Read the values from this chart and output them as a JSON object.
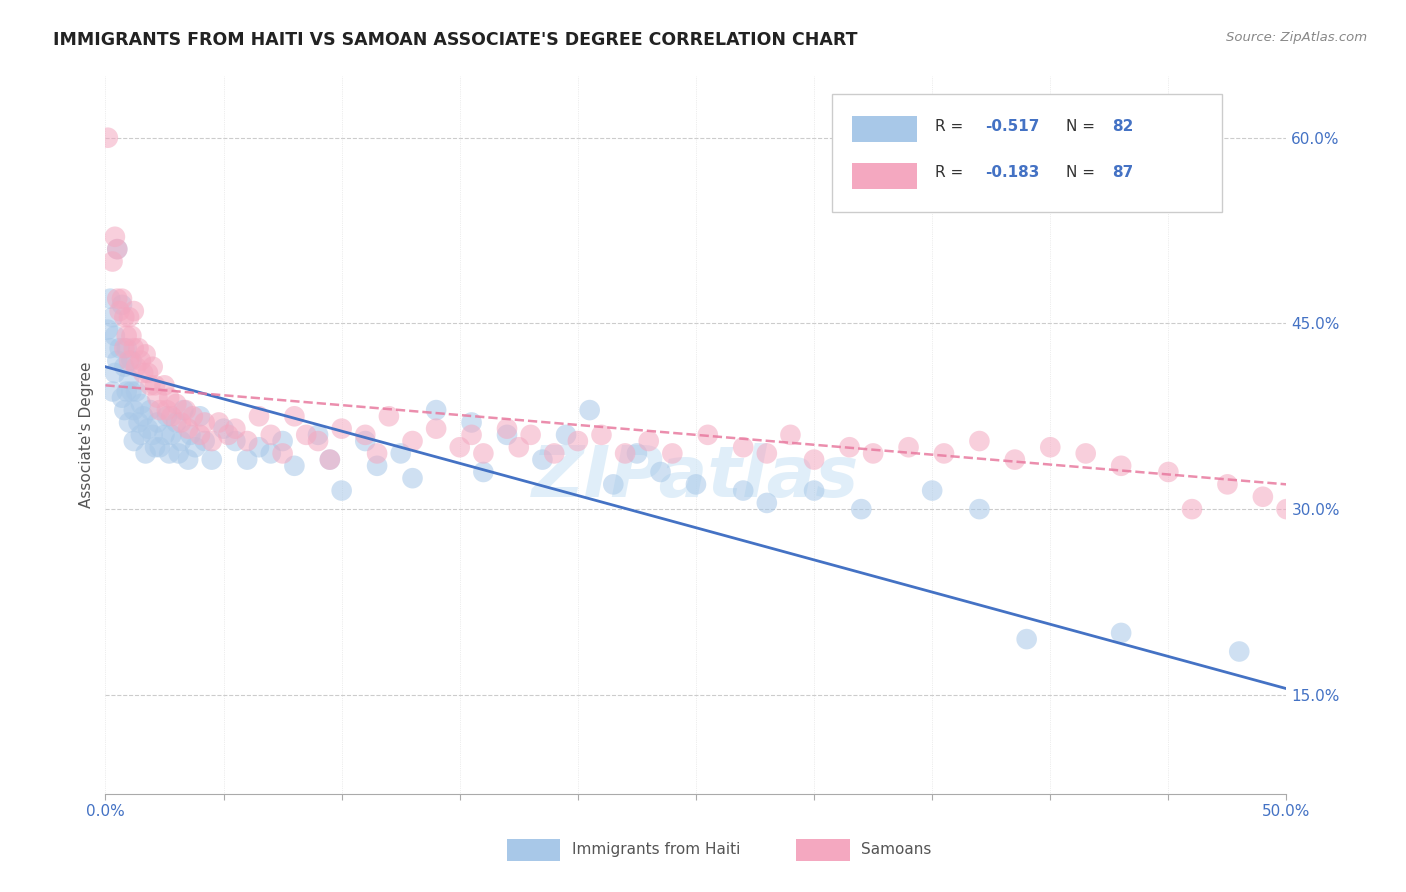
{
  "title": "IMMIGRANTS FROM HAITI VS SAMOAN ASSOCIATE'S DEGREE CORRELATION CHART",
  "source": "Source: ZipAtlas.com",
  "ylabel": "Associate's Degree",
  "haiti_color": "#a8c8e8",
  "samoan_color": "#f4a8c0",
  "haiti_line_color": "#4472c4",
  "samoan_line_color": "#e87a9f",
  "watermark": "ZIPatlas",
  "xlim": [
    0.0,
    0.5
  ],
  "ylim": [
    0.07,
    0.65
  ],
  "yticks_right": [
    0.15,
    0.3,
    0.45,
    0.6
  ],
  "haiti_trend_x": [
    0.0,
    0.5
  ],
  "haiti_trend_y": [
    0.415,
    0.155
  ],
  "samoan_trend_x": [
    0.0,
    0.5
  ],
  "samoan_trend_y": [
    0.4,
    0.32
  ],
  "haiti_points": [
    [
      0.001,
      0.445
    ],
    [
      0.002,
      0.47
    ],
    [
      0.002,
      0.43
    ],
    [
      0.003,
      0.455
    ],
    [
      0.003,
      0.395
    ],
    [
      0.004,
      0.44
    ],
    [
      0.004,
      0.41
    ],
    [
      0.005,
      0.51
    ],
    [
      0.005,
      0.42
    ],
    [
      0.006,
      0.43
    ],
    [
      0.007,
      0.465
    ],
    [
      0.007,
      0.39
    ],
    [
      0.008,
      0.415
    ],
    [
      0.008,
      0.38
    ],
    [
      0.009,
      0.395
    ],
    [
      0.009,
      0.43
    ],
    [
      0.01,
      0.405
    ],
    [
      0.01,
      0.37
    ],
    [
      0.011,
      0.42
    ],
    [
      0.011,
      0.395
    ],
    [
      0.012,
      0.38
    ],
    [
      0.012,
      0.355
    ],
    [
      0.013,
      0.395
    ],
    [
      0.014,
      0.37
    ],
    [
      0.015,
      0.385
    ],
    [
      0.015,
      0.36
    ],
    [
      0.016,
      0.375
    ],
    [
      0.017,
      0.345
    ],
    [
      0.018,
      0.365
    ],
    [
      0.019,
      0.38
    ],
    [
      0.02,
      0.36
    ],
    [
      0.021,
      0.35
    ],
    [
      0.022,
      0.37
    ],
    [
      0.023,
      0.35
    ],
    [
      0.025,
      0.36
    ],
    [
      0.026,
      0.375
    ],
    [
      0.027,
      0.345
    ],
    [
      0.028,
      0.36
    ],
    [
      0.03,
      0.37
    ],
    [
      0.031,
      0.345
    ],
    [
      0.032,
      0.355
    ],
    [
      0.033,
      0.38
    ],
    [
      0.035,
      0.34
    ],
    [
      0.036,
      0.36
    ],
    [
      0.038,
      0.35
    ],
    [
      0.04,
      0.375
    ],
    [
      0.042,
      0.355
    ],
    [
      0.045,
      0.34
    ],
    [
      0.05,
      0.365
    ],
    [
      0.055,
      0.355
    ],
    [
      0.06,
      0.34
    ],
    [
      0.065,
      0.35
    ],
    [
      0.07,
      0.345
    ],
    [
      0.075,
      0.355
    ],
    [
      0.08,
      0.335
    ],
    [
      0.09,
      0.36
    ],
    [
      0.095,
      0.34
    ],
    [
      0.1,
      0.315
    ],
    [
      0.11,
      0.355
    ],
    [
      0.115,
      0.335
    ],
    [
      0.125,
      0.345
    ],
    [
      0.13,
      0.325
    ],
    [
      0.14,
      0.38
    ],
    [
      0.155,
      0.37
    ],
    [
      0.16,
      0.33
    ],
    [
      0.17,
      0.36
    ],
    [
      0.185,
      0.34
    ],
    [
      0.195,
      0.36
    ],
    [
      0.205,
      0.38
    ],
    [
      0.215,
      0.32
    ],
    [
      0.225,
      0.345
    ],
    [
      0.235,
      0.33
    ],
    [
      0.25,
      0.32
    ],
    [
      0.27,
      0.315
    ],
    [
      0.28,
      0.305
    ],
    [
      0.3,
      0.315
    ],
    [
      0.32,
      0.3
    ],
    [
      0.35,
      0.315
    ],
    [
      0.37,
      0.3
    ],
    [
      0.39,
      0.195
    ],
    [
      0.43,
      0.2
    ],
    [
      0.48,
      0.185
    ]
  ],
  "samoan_points": [
    [
      0.001,
      0.6
    ],
    [
      0.003,
      0.5
    ],
    [
      0.004,
      0.52
    ],
    [
      0.005,
      0.47
    ],
    [
      0.005,
      0.51
    ],
    [
      0.006,
      0.46
    ],
    [
      0.007,
      0.47
    ],
    [
      0.008,
      0.455
    ],
    [
      0.008,
      0.43
    ],
    [
      0.009,
      0.44
    ],
    [
      0.01,
      0.455
    ],
    [
      0.01,
      0.42
    ],
    [
      0.011,
      0.44
    ],
    [
      0.012,
      0.43
    ],
    [
      0.012,
      0.46
    ],
    [
      0.013,
      0.415
    ],
    [
      0.014,
      0.43
    ],
    [
      0.015,
      0.42
    ],
    [
      0.016,
      0.41
    ],
    [
      0.017,
      0.425
    ],
    [
      0.018,
      0.41
    ],
    [
      0.019,
      0.4
    ],
    [
      0.02,
      0.415
    ],
    [
      0.021,
      0.4
    ],
    [
      0.022,
      0.39
    ],
    [
      0.023,
      0.38
    ],
    [
      0.025,
      0.4
    ],
    [
      0.026,
      0.38
    ],
    [
      0.027,
      0.39
    ],
    [
      0.028,
      0.375
    ],
    [
      0.03,
      0.385
    ],
    [
      0.032,
      0.37
    ],
    [
      0.034,
      0.38
    ],
    [
      0.035,
      0.365
    ],
    [
      0.037,
      0.375
    ],
    [
      0.04,
      0.36
    ],
    [
      0.042,
      0.37
    ],
    [
      0.045,
      0.355
    ],
    [
      0.048,
      0.37
    ],
    [
      0.052,
      0.36
    ],
    [
      0.055,
      0.365
    ],
    [
      0.06,
      0.355
    ],
    [
      0.065,
      0.375
    ],
    [
      0.07,
      0.36
    ],
    [
      0.075,
      0.345
    ],
    [
      0.08,
      0.375
    ],
    [
      0.085,
      0.36
    ],
    [
      0.09,
      0.355
    ],
    [
      0.095,
      0.34
    ],
    [
      0.1,
      0.365
    ],
    [
      0.11,
      0.36
    ],
    [
      0.115,
      0.345
    ],
    [
      0.12,
      0.375
    ],
    [
      0.13,
      0.355
    ],
    [
      0.14,
      0.365
    ],
    [
      0.15,
      0.35
    ],
    [
      0.155,
      0.36
    ],
    [
      0.16,
      0.345
    ],
    [
      0.17,
      0.365
    ],
    [
      0.175,
      0.35
    ],
    [
      0.18,
      0.36
    ],
    [
      0.19,
      0.345
    ],
    [
      0.2,
      0.355
    ],
    [
      0.21,
      0.36
    ],
    [
      0.22,
      0.345
    ],
    [
      0.23,
      0.355
    ],
    [
      0.24,
      0.345
    ],
    [
      0.255,
      0.36
    ],
    [
      0.27,
      0.35
    ],
    [
      0.28,
      0.345
    ],
    [
      0.29,
      0.36
    ],
    [
      0.3,
      0.34
    ],
    [
      0.315,
      0.35
    ],
    [
      0.325,
      0.345
    ],
    [
      0.34,
      0.35
    ],
    [
      0.355,
      0.345
    ],
    [
      0.37,
      0.355
    ],
    [
      0.385,
      0.34
    ],
    [
      0.4,
      0.35
    ],
    [
      0.415,
      0.345
    ],
    [
      0.43,
      0.335
    ],
    [
      0.45,
      0.33
    ],
    [
      0.46,
      0.3
    ],
    [
      0.475,
      0.32
    ],
    [
      0.49,
      0.31
    ],
    [
      0.5,
      0.3
    ]
  ]
}
